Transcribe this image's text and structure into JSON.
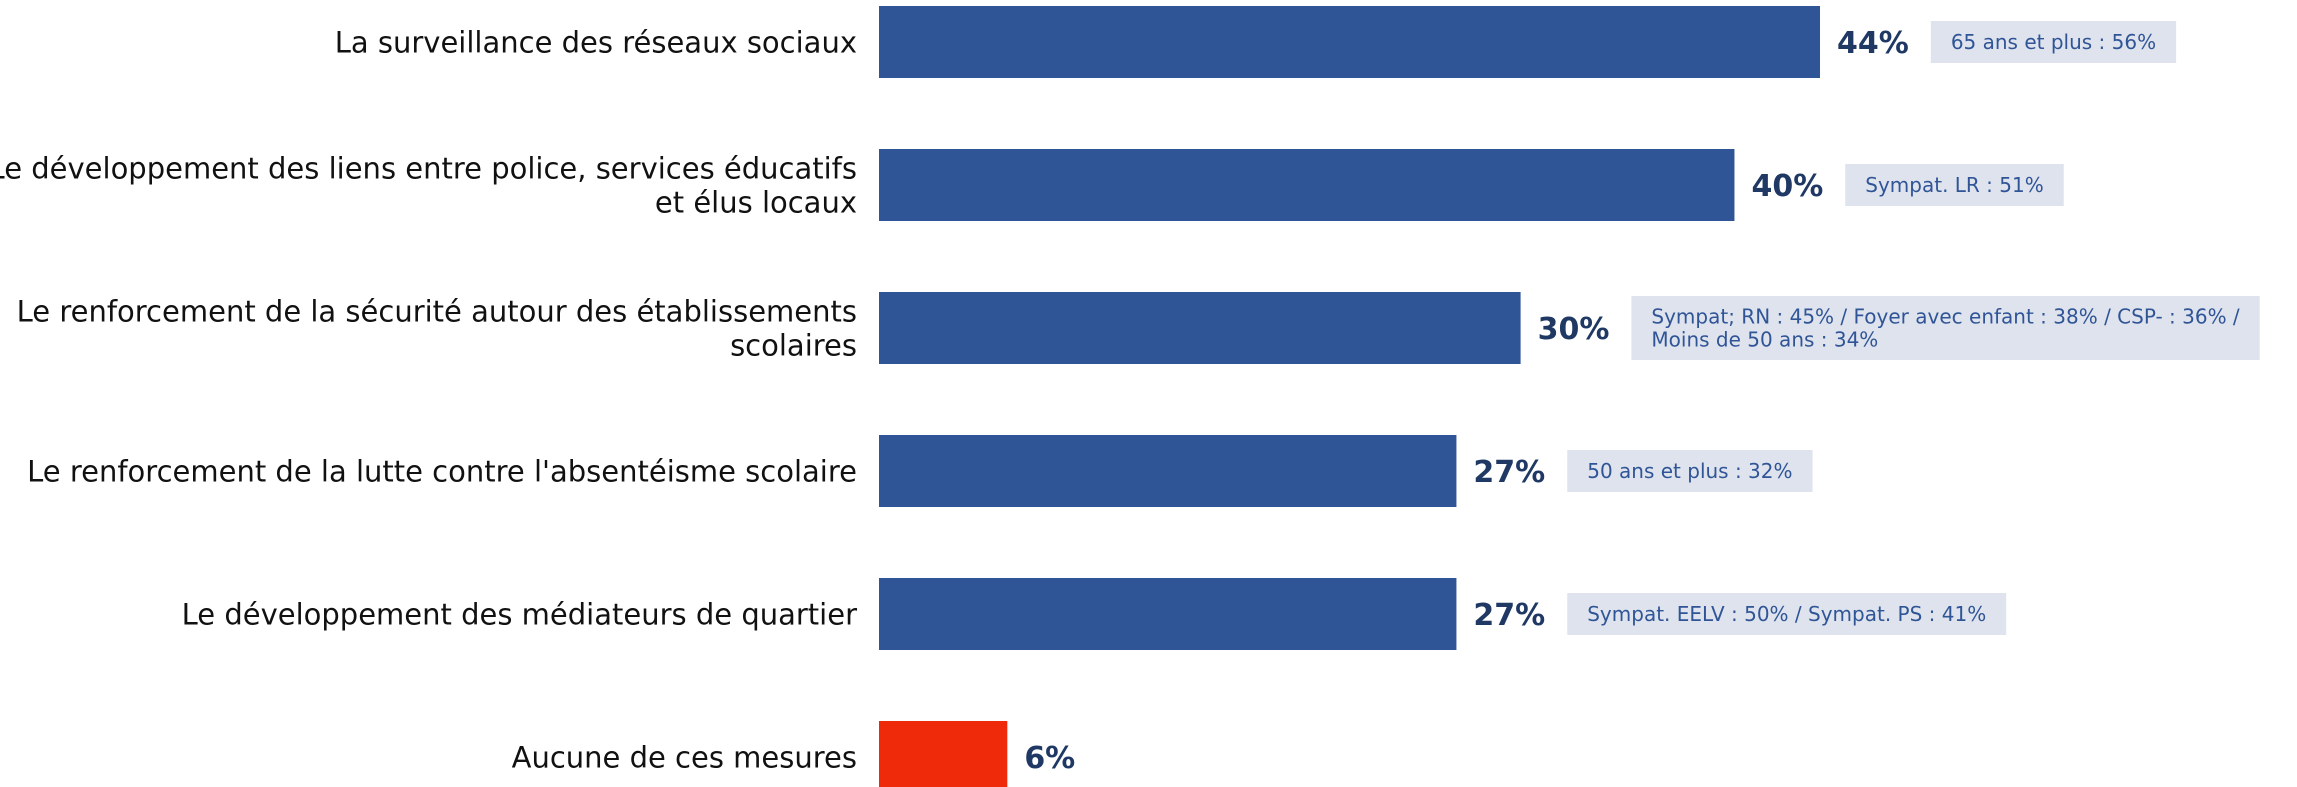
{
  "chart_data": {
    "type": "bar",
    "orientation": "horizontal",
    "categories": [
      "La surveillance des réseaux sociaux",
      "Le développement des liens entre police, services éducatifs et élus locaux",
      "Le renforcement de la sécurité autour des établissements scolaires",
      "Le renforcement de la lutte contre l'absentéisme scolaire",
      "Le développement des médiateurs de quartier",
      "Aucune de ces mesures"
    ],
    "category_lines": [
      [
        "La surveillance des réseaux sociaux"
      ],
      [
        "Le développement des liens entre police, services éducatifs",
        "et élus locaux"
      ],
      [
        "Le renforcement de la sécurité autour des établissements",
        "scolaires"
      ],
      [
        "Le renforcement de la lutte contre l'absentéisme scolaire"
      ],
      [
        "Le développement des médiateurs de quartier"
      ],
      [
        "Aucune de ces mesures"
      ]
    ],
    "values": [
      44,
      40,
      30,
      27,
      27,
      6
    ],
    "value_labels": [
      "44%",
      "40%",
      "30%",
      "27%",
      "27%",
      "6%"
    ],
    "annotations": [
      [
        "65 ans et plus : 56%"
      ],
      [
        "Sympat. LR : 51%"
      ],
      [
        "Sympat; RN : 45% / Foyer avec enfant : 38% / CSP- : 36% /",
        "Moins de 50 ans : 34%"
      ],
      [
        "50 ans et plus : 32%"
      ],
      [
        "Sympat. EELV : 50% / Sympat. PS : 41%"
      ],
      []
    ],
    "bar_colors": [
      "#2f5597",
      "#2f5597",
      "#2f5597",
      "#2f5597",
      "#2f5597",
      "#ee2a0b"
    ],
    "value_label_color": "#1f3864",
    "annotation_text_color": "#2f5597",
    "annotation_bg_color": "#dfe3ed",
    "xlim": [
      0,
      44
    ],
    "grid": false,
    "legend": "none"
  }
}
